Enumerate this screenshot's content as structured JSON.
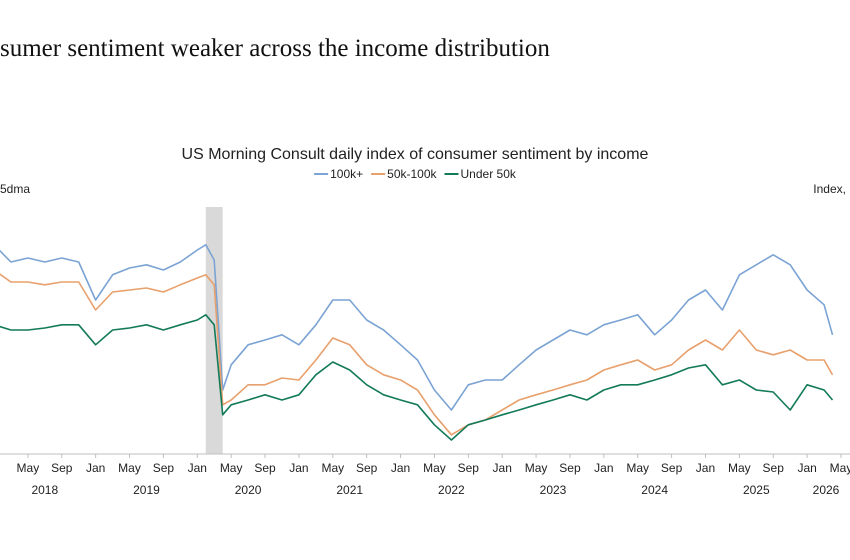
{
  "chart_data": {
    "type": "line",
    "page_title": "sumer sentiment weaker across the income distribution",
    "title": "US Morning Consult daily index of consumer sentiment by income",
    "y_label_left": "5dma",
    "y_label_right": "Index,",
    "x": [
      "2018-01",
      "2018-03",
      "2018-05",
      "2018-07",
      "2018-09",
      "2018-11",
      "2019-01",
      "2019-03",
      "2019-05",
      "2019-07",
      "2019-09",
      "2019-11",
      "2020-01",
      "2020-02",
      "2020-03",
      "2020-04",
      "2020-05",
      "2020-07",
      "2020-09",
      "2020-11",
      "2021-01",
      "2021-03",
      "2021-05",
      "2021-07",
      "2021-09",
      "2021-11",
      "2022-01",
      "2022-03",
      "2022-05",
      "2022-07",
      "2022-09",
      "2022-11",
      "2023-01",
      "2023-03",
      "2023-05",
      "2023-07",
      "2023-09",
      "2023-11",
      "2024-01",
      "2024-03",
      "2024-05",
      "2024-07",
      "2024-09",
      "2024-11",
      "2025-01",
      "2025-03",
      "2025-05",
      "2025-07",
      "2025-09",
      "2025-11",
      "2026-01",
      "2026-03",
      "2026-04"
    ],
    "series": [
      {
        "name": "100k+",
        "color": "#7ba3d4",
        "values": [
          123.8,
          119.5,
          120.5,
          119.5,
          120.5,
          119.5,
          110,
          116.3,
          118,
          118.8,
          117.5,
          119.5,
          122.5,
          123.8,
          120,
          87.5,
          93.8,
          98.8,
          100,
          101.3,
          98.8,
          103.8,
          110,
          110,
          105,
          102.5,
          98.8,
          95,
          87.5,
          82.5,
          88.8,
          90,
          90,
          93.8,
          97.5,
          100,
          102.5,
          101.3,
          103.8,
          105,
          106.3,
          101.3,
          105,
          110,
          112.5,
          107.5,
          116.3,
          118.8,
          121.3,
          118.8,
          112.5,
          108.8,
          101.3
        ]
      },
      {
        "name": "50k-100k",
        "color": "#e8a06d",
        "values": [
          117.5,
          114.5,
          114.5,
          113.8,
          114.5,
          114.5,
          107.5,
          112,
          112.5,
          113,
          112,
          113.8,
          115.5,
          116.3,
          113.8,
          83.8,
          85,
          88.8,
          88.8,
          90.5,
          90,
          95,
          100.5,
          98.8,
          93.8,
          91.3,
          90,
          87.5,
          81.3,
          76.3,
          78.8,
          80,
          82.5,
          85,
          86.3,
          87.5,
          88.8,
          90,
          92.5,
          93.8,
          95,
          92.5,
          93.8,
          97.5,
          100,
          97.5,
          102.5,
          97.5,
          96.3,
          97.5,
          95,
          95,
          91.3
        ]
      },
      {
        "name": "Under 50k",
        "color": "#137a5a",
        "values": [
          103.8,
          102.5,
          102.5,
          103,
          103.8,
          103.8,
          98.8,
          102.5,
          103,
          103.8,
          102.5,
          103.8,
          105,
          106.3,
          103.8,
          81.3,
          83.8,
          85,
          86.3,
          85,
          86.3,
          91.3,
          94.5,
          92.5,
          88.8,
          86.3,
          85,
          83.8,
          78.8,
          75,
          78.8,
          80,
          81.3,
          82.5,
          83.8,
          85,
          86.3,
          85,
          87.5,
          88.8,
          88.8,
          90,
          91.3,
          93,
          93.8,
          88.8,
          90,
          87.5,
          87,
          82.5,
          88.8,
          87.5,
          85
        ]
      }
    ],
    "shade": [
      "2020-02",
      "2020-04"
    ],
    "xlim": [
      "2018-01",
      "2026-05"
    ],
    "ylim": [
      70,
      130
    ],
    "xticks": [
      {
        "value": "2018-05",
        "label": "May"
      },
      {
        "value": "2018-09",
        "label": "Sep"
      },
      {
        "value": "2019-01",
        "label": "Jan"
      },
      {
        "value": "2019-05",
        "label": "May"
      },
      {
        "value": "2019-09",
        "label": "Sep"
      },
      {
        "value": "2020-01",
        "label": "Jan"
      },
      {
        "value": "2020-05",
        "label": "May"
      },
      {
        "value": "2020-09",
        "label": "Sep"
      },
      {
        "value": "2021-01",
        "label": "Jan"
      },
      {
        "value": "2021-05",
        "label": "May"
      },
      {
        "value": "2021-09",
        "label": "Sep"
      },
      {
        "value": "2022-01",
        "label": "Jan"
      },
      {
        "value": "2022-05",
        "label": "May"
      },
      {
        "value": "2022-09",
        "label": "Sep"
      },
      {
        "value": "2023-01",
        "label": "Jan"
      },
      {
        "value": "2023-05",
        "label": "May"
      },
      {
        "value": "2023-09",
        "label": "Sep"
      },
      {
        "value": "2024-01",
        "label": "Jan"
      },
      {
        "value": "2024-05",
        "label": "May"
      },
      {
        "value": "2024-09",
        "label": "Sep"
      },
      {
        "value": "2025-01",
        "label": "Jan"
      },
      {
        "value": "2025-05",
        "label": "May"
      },
      {
        "value": "2025-09",
        "label": "Sep"
      },
      {
        "value": "2026-01",
        "label": "Jan"
      },
      {
        "value": "2026-05",
        "label": "May"
      }
    ],
    "year_labels": [
      "2018",
      "2019",
      "2020",
      "2021",
      "2022",
      "2023",
      "2024",
      "2025",
      "2026"
    ]
  }
}
